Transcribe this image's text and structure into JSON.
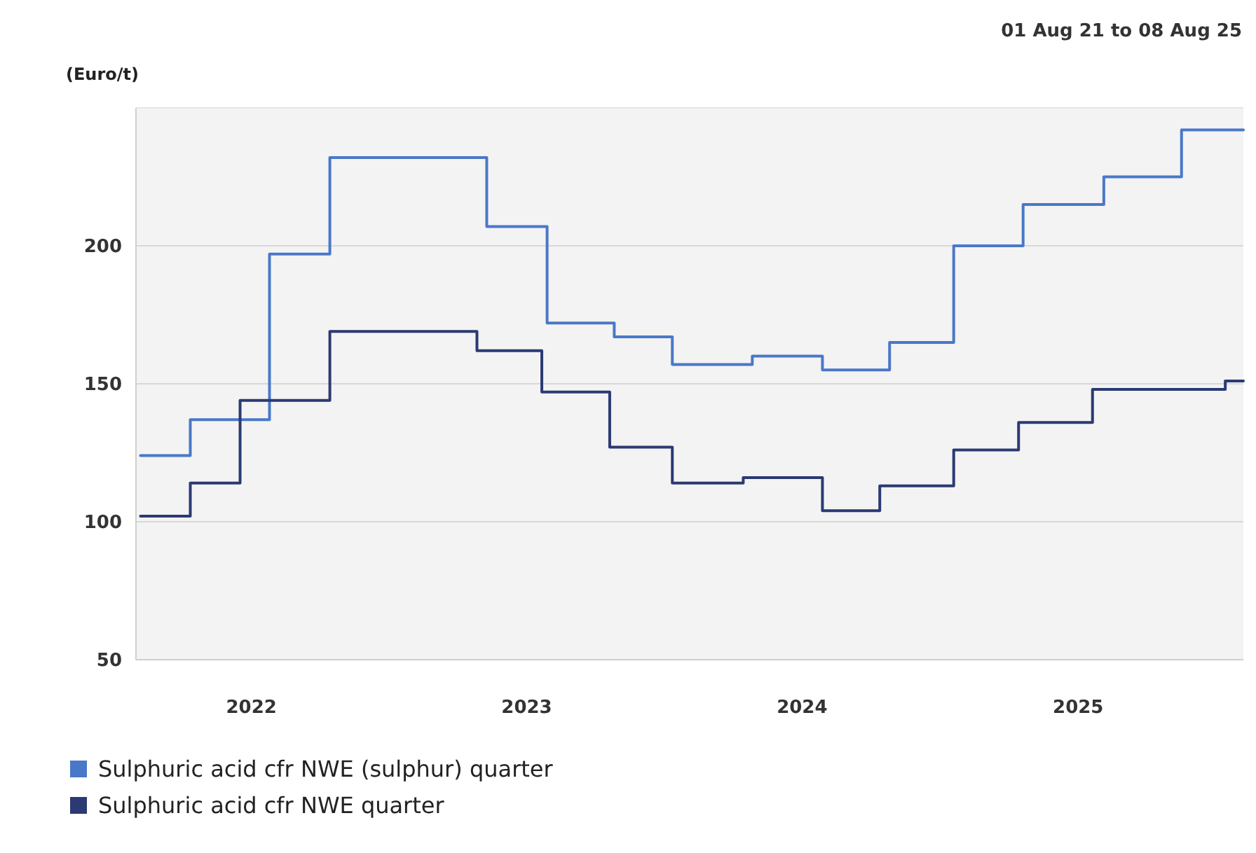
{
  "chart_data": {
    "type": "step",
    "subtitle": "01 Aug 21 to 08 Aug 25",
    "ylabel": "(Euro/t)",
    "xlim": [
      "2021-08-01",
      "2025-08-08"
    ],
    "xticks": [
      "2022",
      "2023",
      "2024",
      "2025"
    ],
    "ylim": [
      50,
      250
    ],
    "yticks": [
      50,
      100,
      150,
      200
    ],
    "grid": "y",
    "legend": "bottom",
    "marker": "none",
    "line_style": "solid",
    "series": [
      {
        "name": "Sulphuric acid cfr NWE (sulphur) quarter",
        "color": "#4a78c8",
        "x": [
          "2021-08-07",
          "2021-10-12",
          "2022-01-25",
          "2022-04-15",
          "2022-11-09",
          "2023-01-28",
          "2023-04-27",
          "2023-07-13",
          "2023-10-27",
          "2024-01-28",
          "2024-04-26",
          "2024-07-20",
          "2024-10-20",
          "2025-02-04",
          "2025-05-18",
          "2025-08-08"
        ],
        "values": [
          124,
          137,
          197,
          232,
          207,
          172,
          167,
          157,
          160,
          155,
          165,
          200,
          215,
          225,
          242,
          242
        ]
      },
      {
        "name": "Sulphuric acid cfr NWE quarter",
        "color": "#2b3a72",
        "x": [
          "2021-08-07",
          "2021-10-12",
          "2021-12-17",
          "2022-04-15",
          "2022-10-27",
          "2023-01-21",
          "2023-04-21",
          "2023-07-13",
          "2023-10-15",
          "2024-01-28",
          "2024-04-13",
          "2024-07-20",
          "2024-10-14",
          "2025-01-20",
          "2025-07-15",
          "2025-08-08"
        ],
        "values": [
          102,
          114,
          144,
          169,
          162,
          147,
          127,
          114,
          116,
          104,
          113,
          126,
          136,
          148,
          151,
          151
        ]
      }
    ]
  }
}
